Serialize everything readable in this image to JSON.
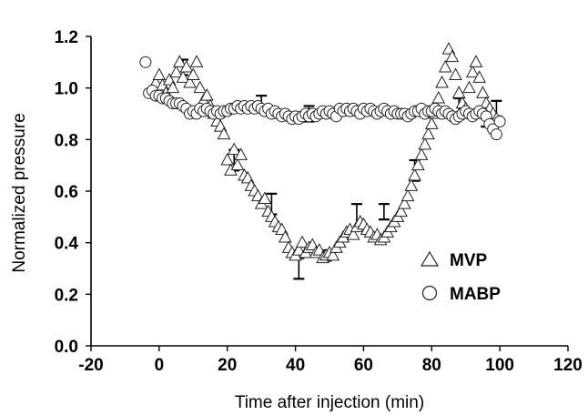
{
  "chart_data": {
    "type": "scatter",
    "xlabel": "Time after injection (min)",
    "ylabel": "Normalized pressure",
    "xlim": [
      -20,
      120
    ],
    "ylim": [
      0.0,
      1.2
    ],
    "xticks": [
      "-20",
      "0",
      "20",
      "40",
      "60",
      "80",
      "100",
      "120"
    ],
    "yticks": [
      "0.0",
      "0.2",
      "0.4",
      "0.6",
      "0.8",
      "1.0",
      "1.2"
    ],
    "grid": false,
    "legend_position": "bottom-right",
    "series": [
      {
        "name": "MVP",
        "marker": "triangle",
        "points": [
          [
            -1,
            1.02
          ],
          [
            0,
            1.05
          ],
          [
            1,
            1.01
          ],
          [
            2,
            0.98
          ],
          [
            3,
            1.03
          ],
          [
            4,
            1.0
          ],
          [
            5,
            1.06
          ],
          [
            6,
            1.1
          ],
          [
            7,
            1.04
          ],
          [
            8,
            1.08
          ],
          [
            9,
            1.02
          ],
          [
            10,
            1.05
          ],
          [
            11,
            1.1
          ],
          [
            12,
            1.0
          ],
          [
            13,
            0.95
          ],
          [
            14,
            0.97
          ],
          [
            15,
            0.93
          ],
          [
            16,
            0.9
          ],
          [
            17,
            0.87
          ],
          [
            18,
            0.85
          ],
          [
            19,
            0.82
          ],
          [
            20,
            0.72
          ],
          [
            21,
            0.68
          ],
          [
            22,
            0.76
          ],
          [
            23,
            0.7
          ],
          [
            24,
            0.74
          ],
          [
            25,
            0.66
          ],
          [
            26,
            0.65
          ],
          [
            27,
            0.62
          ],
          [
            28,
            0.6
          ],
          [
            29,
            0.58
          ],
          [
            30,
            0.55
          ],
          [
            31,
            0.57
          ],
          [
            32,
            0.52
          ],
          [
            33,
            0.5
          ],
          [
            34,
            0.48
          ],
          [
            35,
            0.46
          ],
          [
            36,
            0.45
          ],
          [
            37,
            0.42
          ],
          [
            38,
            0.38
          ],
          [
            39,
            0.36
          ],
          [
            40,
            0.35
          ],
          [
            41,
            0.37
          ],
          [
            42,
            0.4
          ],
          [
            43,
            0.36
          ],
          [
            44,
            0.38
          ],
          [
            45,
            0.39
          ],
          [
            46,
            0.36
          ],
          [
            47,
            0.37
          ],
          [
            48,
            0.34
          ],
          [
            49,
            0.35
          ],
          [
            50,
            0.36
          ],
          [
            51,
            0.35
          ],
          [
            52,
            0.38
          ],
          [
            53,
            0.4
          ],
          [
            54,
            0.42
          ],
          [
            55,
            0.44
          ],
          [
            56,
            0.45
          ],
          [
            57,
            0.43
          ],
          [
            58,
            0.46
          ],
          [
            59,
            0.48
          ],
          [
            60,
            0.47
          ],
          [
            61,
            0.45
          ],
          [
            62,
            0.44
          ],
          [
            63,
            0.42
          ],
          [
            64,
            0.43
          ],
          [
            65,
            0.41
          ],
          [
            66,
            0.42
          ],
          [
            67,
            0.44
          ],
          [
            68,
            0.46
          ],
          [
            69,
            0.48
          ],
          [
            70,
            0.5
          ],
          [
            71,
            0.52
          ],
          [
            72,
            0.55
          ],
          [
            73,
            0.58
          ],
          [
            74,
            0.62
          ],
          [
            75,
            0.66
          ],
          [
            76,
            0.7
          ],
          [
            77,
            0.74
          ],
          [
            78,
            0.78
          ],
          [
            79,
            0.82
          ],
          [
            80,
            0.86
          ],
          [
            81,
            0.9
          ],
          [
            82,
            0.96
          ],
          [
            83,
            1.02
          ],
          [
            84,
            1.08
          ],
          [
            85,
            1.15
          ],
          [
            86,
            1.12
          ],
          [
            87,
            1.05
          ],
          [
            88,
            0.98
          ],
          [
            89,
            0.94
          ],
          [
            90,
            0.92
          ],
          [
            91,
            1.0
          ],
          [
            92,
            1.06
          ],
          [
            93,
            1.1
          ],
          [
            94,
            1.04
          ],
          [
            95,
            0.98
          ],
          [
            96,
            0.94
          ],
          [
            97,
            0.92
          ],
          [
            98,
            0.9
          ],
          [
            99,
            0.88
          ]
        ],
        "error_bars": [
          [
            7,
            1.08,
            0.03
          ],
          [
            22,
            0.72,
            0.04
          ],
          [
            33,
            0.55,
            0.04
          ],
          [
            41,
            0.3,
            0.04
          ],
          [
            49,
            0.35,
            0.02
          ],
          [
            58,
            0.5,
            0.05
          ],
          [
            66,
            0.52,
            0.03
          ],
          [
            75,
            0.68,
            0.04
          ],
          [
            88,
            0.92,
            0.04
          ],
          [
            99,
            0.92,
            0.03
          ]
        ]
      },
      {
        "name": "MABP",
        "marker": "circle",
        "points": [
          [
            -4,
            1.1
          ],
          [
            -3,
            0.98
          ],
          [
            -2,
            0.99
          ],
          [
            -1,
            0.97
          ],
          [
            0,
            0.97
          ],
          [
            1,
            0.96
          ],
          [
            2,
            0.96
          ],
          [
            3,
            0.95
          ],
          [
            4,
            0.94
          ],
          [
            5,
            0.94
          ],
          [
            6,
            0.94
          ],
          [
            7,
            0.93
          ],
          [
            8,
            0.92
          ],
          [
            9,
            0.9
          ],
          [
            10,
            0.91
          ],
          [
            11,
            0.9
          ],
          [
            12,
            0.92
          ],
          [
            13,
            0.91
          ],
          [
            14,
            0.92
          ],
          [
            15,
            0.91
          ],
          [
            16,
            0.9
          ],
          [
            17,
            0.91
          ],
          [
            18,
            0.9
          ],
          [
            19,
            0.91
          ],
          [
            20,
            0.91
          ],
          [
            21,
            0.92
          ],
          [
            22,
            0.92
          ],
          [
            23,
            0.93
          ],
          [
            24,
            0.92
          ],
          [
            25,
            0.93
          ],
          [
            26,
            0.92
          ],
          [
            27,
            0.93
          ],
          [
            28,
            0.92
          ],
          [
            29,
            0.93
          ],
          [
            30,
            0.92
          ],
          [
            31,
            0.91
          ],
          [
            32,
            0.92
          ],
          [
            33,
            0.9
          ],
          [
            34,
            0.91
          ],
          [
            35,
            0.9
          ],
          [
            36,
            0.89
          ],
          [
            37,
            0.9
          ],
          [
            38,
            0.89
          ],
          [
            39,
            0.88
          ],
          [
            40,
            0.89
          ],
          [
            41,
            0.88
          ],
          [
            42,
            0.89
          ],
          [
            43,
            0.9
          ],
          [
            44,
            0.89
          ],
          [
            45,
            0.9
          ],
          [
            46,
            0.89
          ],
          [
            47,
            0.9
          ],
          [
            48,
            0.91
          ],
          [
            49,
            0.9
          ],
          [
            50,
            0.91
          ],
          [
            51,
            0.9
          ],
          [
            52,
            0.89
          ],
          [
            53,
            0.92
          ],
          [
            54,
            0.91
          ],
          [
            55,
            0.92
          ],
          [
            56,
            0.91
          ],
          [
            57,
            0.92
          ],
          [
            58,
            0.91
          ],
          [
            59,
            0.9
          ],
          [
            60,
            0.92
          ],
          [
            61,
            0.91
          ],
          [
            62,
            0.92
          ],
          [
            63,
            0.91
          ],
          [
            64,
            0.9
          ],
          [
            65,
            0.91
          ],
          [
            66,
            0.92
          ],
          [
            67,
            0.91
          ],
          [
            68,
            0.9
          ],
          [
            69,
            0.91
          ],
          [
            70,
            0.9
          ],
          [
            71,
            0.9
          ],
          [
            72,
            0.9
          ],
          [
            73,
            0.89
          ],
          [
            74,
            0.9
          ],
          [
            75,
            0.91
          ],
          [
            76,
            0.91
          ],
          [
            77,
            0.92
          ],
          [
            78,
            0.9
          ],
          [
            79,
            0.91
          ],
          [
            80,
            0.91
          ],
          [
            81,
            0.92
          ],
          [
            82,
            0.91
          ],
          [
            83,
            0.9
          ],
          [
            84,
            0.91
          ],
          [
            85,
            0.9
          ],
          [
            86,
            0.89
          ],
          [
            87,
            0.88
          ],
          [
            88,
            0.89
          ],
          [
            89,
            0.9
          ],
          [
            90,
            0.91
          ],
          [
            91,
            0.9
          ],
          [
            92,
            0.89
          ],
          [
            93,
            0.9
          ],
          [
            94,
            0.91
          ],
          [
            95,
            0.9
          ],
          [
            96,
            0.89
          ],
          [
            97,
            0.86
          ],
          [
            98,
            0.84
          ],
          [
            99,
            0.82
          ],
          [
            100,
            0.87
          ]
        ],
        "error_bars": [
          [
            3,
            0.97,
            0.02
          ],
          [
            30,
            0.94,
            0.03
          ],
          [
            44,
            0.9,
            0.03
          ],
          [
            96,
            0.88,
            0.03
          ]
        ]
      }
    ]
  }
}
